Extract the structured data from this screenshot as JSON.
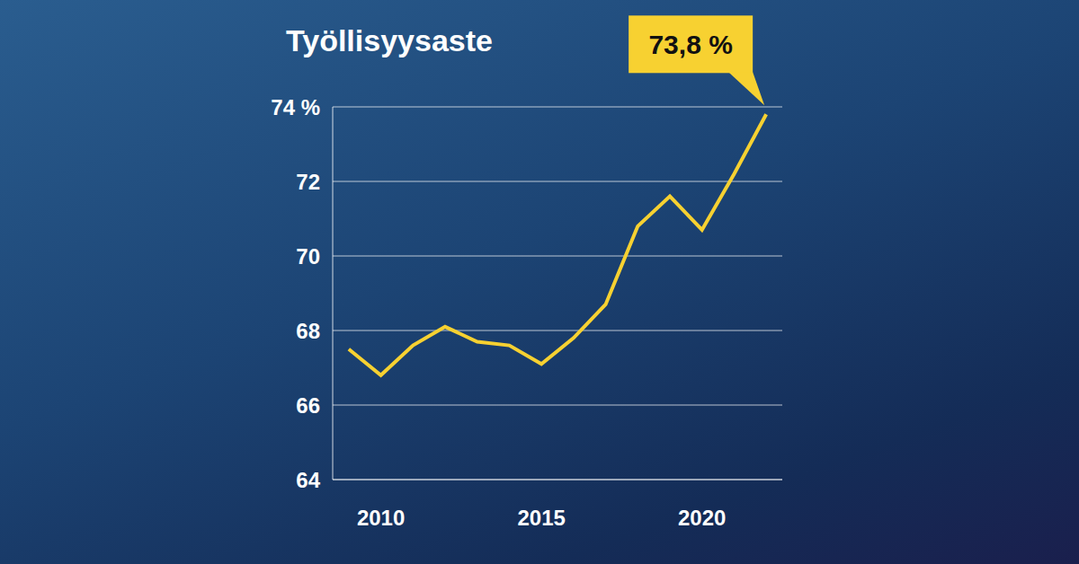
{
  "chart_data": {
    "type": "line",
    "title": "Työllisyysaste",
    "x": [
      2009,
      2010,
      2011,
      2012,
      2013,
      2014,
      2015,
      2016,
      2017,
      2018,
      2019,
      2020,
      2021,
      2022
    ],
    "values": [
      67.5,
      66.8,
      67.6,
      68.1,
      67.7,
      67.6,
      67.1,
      67.8,
      68.7,
      70.8,
      71.6,
      70.7,
      72.2,
      73.8
    ],
    "color": "#f7d131",
    "xlim": [
      2008.5,
      2022.5
    ],
    "ylim": [
      64,
      74
    ],
    "xticks": [
      2010,
      2015,
      2020
    ],
    "yticks": [
      64,
      66,
      68,
      70,
      72,
      {
        "value": 74,
        "label": "74 %"
      }
    ],
    "grid": true,
    "annotations": [
      {
        "text": "73,8 %",
        "x": 2022,
        "y": 73.8
      }
    ]
  }
}
